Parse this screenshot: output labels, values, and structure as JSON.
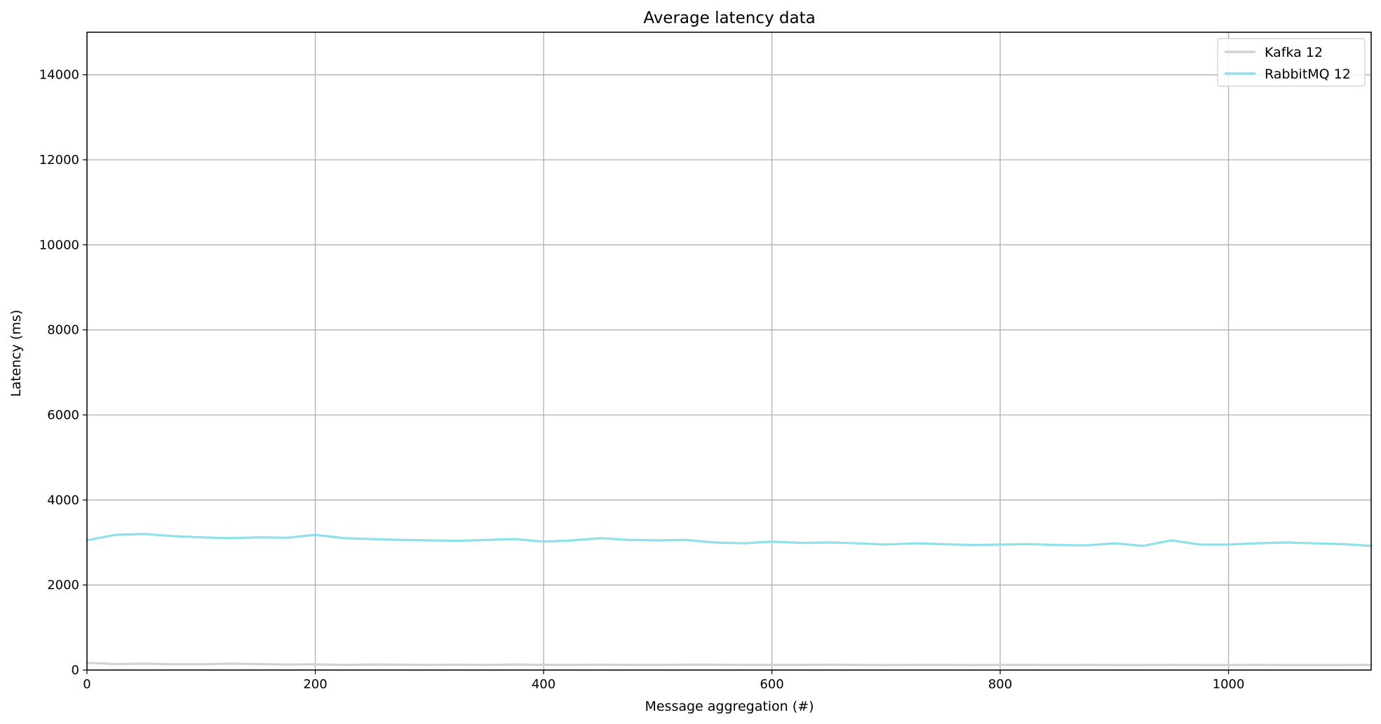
{
  "chart_data": {
    "type": "line",
    "title": "Average latency data",
    "xlabel": "Message aggregation (#)",
    "ylabel": "Latency (ms)",
    "xlim": [
      0,
      1125
    ],
    "ylim": [
      0,
      15000
    ],
    "xticks": [
      0,
      200,
      400,
      600,
      800,
      1000
    ],
    "yticks": [
      0,
      2000,
      4000,
      6000,
      8000,
      10000,
      12000,
      14000
    ],
    "xtick_labels": [
      "0",
      "200",
      "400",
      "600",
      "800",
      "1000"
    ],
    "ytick_labels": [
      "0",
      "2000",
      "4000",
      "6000",
      "8000",
      "10000",
      "12000",
      "14000"
    ],
    "grid": true,
    "legend_position": "top-right",
    "series": [
      {
        "name": "Kafka 12",
        "color": "#d0d2d3",
        "x": [
          0,
          25,
          50,
          75,
          100,
          125,
          150,
          175,
          200,
          225,
          250,
          275,
          300,
          325,
          350,
          375,
          400,
          425,
          450,
          475,
          500,
          525,
          550,
          575,
          600,
          625,
          650,
          675,
          700,
          725,
          750,
          775,
          800,
          825,
          850,
          875,
          900,
          925,
          950,
          975,
          1000,
          1025,
          1050,
          1075,
          1100,
          1125
        ],
        "values": [
          170,
          140,
          150,
          135,
          135,
          150,
          140,
          130,
          135,
          120,
          130,
          125,
          120,
          125,
          120,
          130,
          120,
          120,
          125,
          120,
          120,
          125,
          125,
          120,
          120,
          120,
          125,
          120,
          115,
          120,
          120,
          115,
          120,
          120,
          115,
          120,
          115,
          115,
          120,
          115,
          115,
          120,
          115,
          115,
          115,
          120
        ]
      },
      {
        "name": "RabbitMQ 12",
        "color": "#8ee0ea",
        "x": [
          0,
          25,
          50,
          75,
          100,
          125,
          150,
          175,
          200,
          225,
          250,
          275,
          300,
          325,
          350,
          375,
          400,
          425,
          450,
          475,
          500,
          525,
          550,
          575,
          600,
          625,
          650,
          675,
          700,
          725,
          750,
          775,
          800,
          825,
          850,
          875,
          900,
          925,
          950,
          975,
          1000,
          1025,
          1050,
          1075,
          1100,
          1125
        ],
        "values": [
          3050,
          3180,
          3200,
          3150,
          3120,
          3100,
          3120,
          3110,
          3180,
          3100,
          3080,
          3060,
          3050,
          3040,
          3060,
          3080,
          3020,
          3050,
          3100,
          3060,
          3050,
          3060,
          3000,
          2980,
          3020,
          2990,
          3000,
          2980,
          2950,
          2980,
          2960,
          2940,
          2950,
          2960,
          2940,
          2930,
          2980,
          2920,
          3050,
          2950,
          2950,
          2980,
          3000,
          2980,
          2960,
          2920
        ]
      }
    ]
  }
}
